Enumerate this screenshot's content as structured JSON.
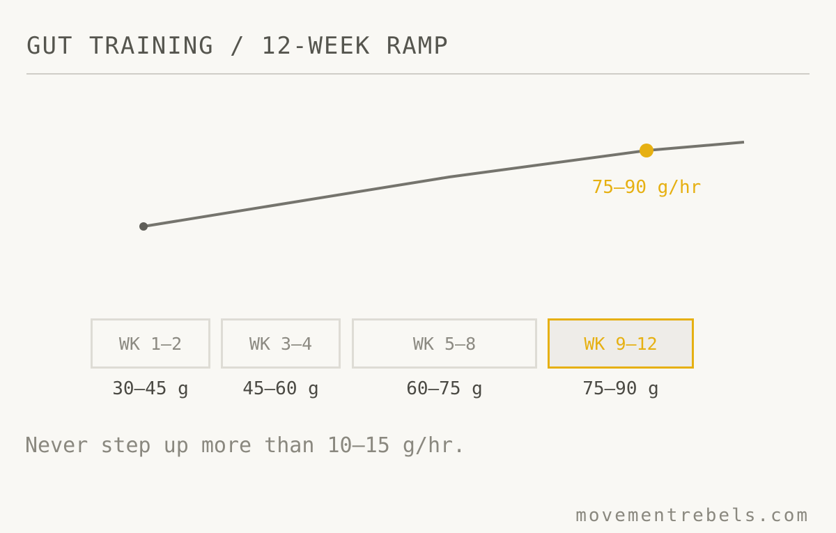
{
  "header": {
    "title": "GUT TRAINING / 12-WEEK RAMP"
  },
  "highlight_label": "75–90 g/hr",
  "stages": [
    {
      "label": "WK 1–2",
      "amount": "30–45 g"
    },
    {
      "label": "WK 3–4",
      "amount": "45–60 g"
    },
    {
      "label": "WK 5–8",
      "amount": "60–75 g"
    },
    {
      "label": "WK 9–12",
      "amount": "75–90 g"
    }
  ],
  "note": "Never step up more than 10–15 g/hr.",
  "footer": "movementrebels.com"
}
